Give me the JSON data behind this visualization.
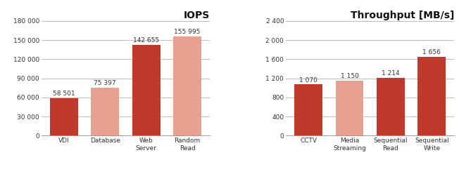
{
  "iops": {
    "title": "IOPS",
    "categories": [
      "VDI",
      "Database",
      "Web\nServer",
      "Random\nRead"
    ],
    "values": [
      58501,
      75397,
      142655,
      155995
    ],
    "colors": [
      "#c0392b",
      "#e8a090",
      "#c0392b",
      "#e8a090"
    ],
    "labels": [
      "58 501",
      "75 397",
      "142 655",
      "155 995"
    ],
    "ylim": [
      0,
      180000
    ],
    "yticks": [
      0,
      30000,
      60000,
      90000,
      120000,
      150000,
      180000
    ],
    "ytick_labels": [
      "0",
      "30 000",
      "60 000",
      "90 000",
      "120 000",
      "150 000",
      "180 000"
    ]
  },
  "throughput": {
    "title": "Throughput [MB/s]",
    "categories": [
      "CCTV",
      "Media\nStreaming",
      "Sequential\nRead",
      "Sequential\nWrite"
    ],
    "values": [
      1070,
      1150,
      1214,
      1656
    ],
    "colors": [
      "#c0392b",
      "#e8a090",
      "#c0392b",
      "#c0392b"
    ],
    "labels": [
      "1 070",
      "1 150",
      "1 214",
      "1 656"
    ],
    "ylim": [
      0,
      2400
    ],
    "yticks": [
      0,
      400,
      800,
      1200,
      1600,
      2000,
      2400
    ],
    "ytick_labels": [
      "0",
      "400",
      "800",
      "1 200",
      "1 600",
      "2 000",
      "2 400"
    ]
  },
  "bar_width": 0.68,
  "label_fontsize": 6.5,
  "title_fontsize": 10,
  "tick_fontsize": 6.5,
  "background_color": "#ffffff",
  "grid_color": "#bbbbbb",
  "grid_linewidth": 0.7
}
